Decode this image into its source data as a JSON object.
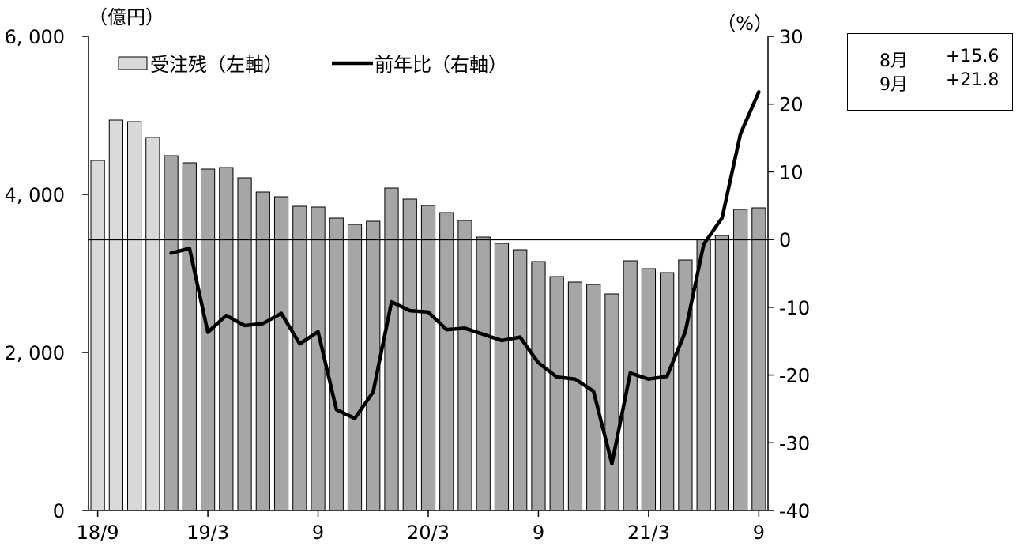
{
  "chart_data": {
    "type": "bar+line",
    "title": "",
    "left_unit": "（億円）",
    "right_unit": "（%）",
    "left_axis": {
      "min": 0,
      "max": 6000,
      "ticks": [
        0,
        2000,
        4000,
        6000
      ],
      "tick_labels": [
        "0",
        "2, 000",
        "4, 000",
        "6, 000"
      ]
    },
    "right_axis": {
      "min": -40,
      "max": 30,
      "ticks": [
        -40,
        -30,
        -20,
        -10,
        0,
        10,
        20,
        30
      ],
      "tick_labels": [
        "-40",
        "-30",
        "-20",
        "-10",
        "0",
        "10",
        "20",
        "30"
      ]
    },
    "x_tick_labels": [
      {
        "index": 0,
        "label": "18/9"
      },
      {
        "index": 6,
        "label": "19/3"
      },
      {
        "index": 12,
        "label": "9"
      },
      {
        "index": 18,
        "label": "20/3"
      },
      {
        "index": 24,
        "label": "9"
      },
      {
        "index": 30,
        "label": "21/3"
      },
      {
        "index": 36,
        "label": "9"
      }
    ],
    "legend": [
      {
        "name": "受注残（左軸）",
        "kind": "bar"
      },
      {
        "name": "前年比（右軸）",
        "kind": "line"
      }
    ],
    "bars": {
      "series_name": "受注残（左軸）",
      "values": [
        4430,
        4940,
        4920,
        4720,
        4490,
        4400,
        4320,
        4340,
        4210,
        4030,
        3970,
        3850,
        3840,
        3700,
        3620,
        3660,
        4080,
        3940,
        3860,
        3770,
        3670,
        3460,
        3380,
        3300,
        3150,
        2960,
        2890,
        2860,
        2740,
        3160,
        3060,
        3010,
        3170,
        3430,
        3480,
        3810,
        3830
      ],
      "light_count": 4,
      "light_color": "#d9d9d9",
      "dark_color": "#a6a6a6"
    },
    "line": {
      "series_name": "前年比（右軸）",
      "start_index": 4,
      "values": [
        -2.0,
        -1.3,
        -13.7,
        -11.2,
        -12.7,
        -12.4,
        -10.9,
        -15.4,
        -13.6,
        -25.1,
        -26.4,
        -22.5,
        -9.2,
        -10.5,
        -10.7,
        -13.3,
        -13.1,
        -14.0,
        -14.9,
        -14.4,
        -18.2,
        -20.3,
        -20.6,
        -22.4,
        -33.1,
        -19.7,
        -20.6,
        -20.2,
        -13.6,
        -0.7,
        3.2,
        15.6,
        21.8
      ],
      "color": "#000000"
    },
    "grid": false,
    "legend_placement": "top-left"
  },
  "info_box": {
    "rows": [
      {
        "month": "8月",
        "value": "+15.6"
      },
      {
        "month": "9月",
        "value": "+21.8"
      }
    ]
  }
}
